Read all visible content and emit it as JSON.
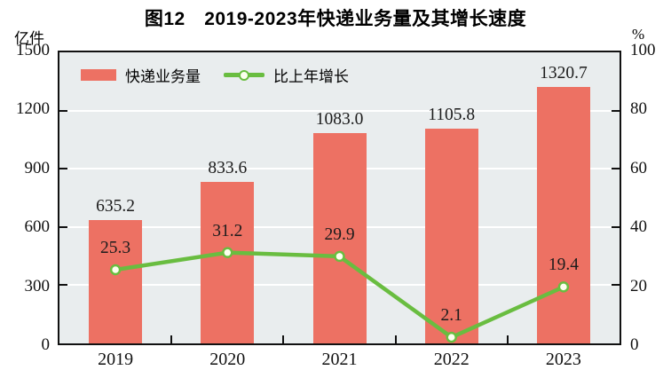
{
  "title": "图12　2019-2023年快递业务量及其增长速度",
  "left_axis": {
    "unit": "亿件",
    "ticks": [
      "1500",
      "1200",
      "900",
      "600",
      "300",
      "0"
    ]
  },
  "right_axis": {
    "unit": "%",
    "ticks": [
      "100",
      "80",
      "60",
      "40",
      "20",
      "0"
    ]
  },
  "legend": {
    "bar_label": "快递业务量",
    "line_label": "比上年增长"
  },
  "colors": {
    "bar": "#ED7163",
    "line": "#69BD40",
    "marker_fill": "#FCFFEE",
    "plot_bg": "#E9EDEE",
    "grid": "#FFFFFF",
    "axis": "#111111"
  },
  "chart_data": {
    "type": "bar+line combo",
    "title": "图12　2019-2023年快递业务量及其增长速度",
    "categories": [
      "2019",
      "2020",
      "2021",
      "2022",
      "2023"
    ],
    "series": [
      {
        "name": "快递业务量",
        "type": "bar",
        "axis": "left",
        "unit": "亿件",
        "values": [
          635.2,
          833.6,
          1083.0,
          1105.8,
          1320.7
        ]
      },
      {
        "name": "比上年增长",
        "type": "line",
        "axis": "right",
        "unit": "%",
        "values": [
          25.3,
          31.2,
          29.9,
          2.1,
          19.4
        ]
      }
    ],
    "left_ylim": [
      0,
      1500
    ],
    "right_ylim": [
      0,
      100
    ],
    "left_tick_step": 300,
    "right_tick_step": 20,
    "grid": true,
    "gridline_values_left": [
      300,
      600,
      900,
      1200
    ],
    "legend_position": "top-left-inside",
    "value_labels_shown": true
  }
}
